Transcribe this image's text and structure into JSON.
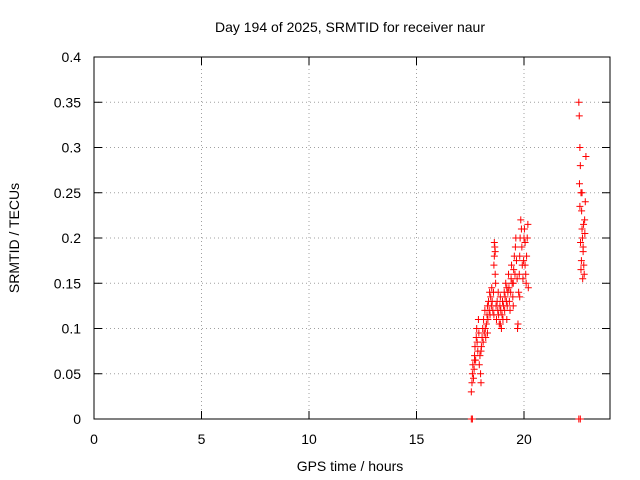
{
  "chart_data": {
    "type": "scatter",
    "title": "Day 194 of 2025, SRMTID for receiver naur",
    "xlabel": "GPS time / hours",
    "ylabel": "SRMTID / TECUs",
    "xlim": [
      0,
      24
    ],
    "ylim": [
      0,
      0.4
    ],
    "x_ticks": [
      0,
      5,
      10,
      15,
      20
    ],
    "x_tick_labels": [
      "0",
      "5",
      "10",
      "15",
      "20"
    ],
    "y_ticks": [
      0,
      0.05,
      0.1,
      0.15,
      0.2,
      0.25,
      0.3,
      0.35,
      0.4
    ],
    "y_tick_labels": [
      "0",
      "0.05",
      "0.1",
      "0.15",
      "0.2",
      "0.25",
      "0.3",
      "0.35",
      "0.4"
    ],
    "grid": true,
    "marker": "plus",
    "colors": {
      "points": "#ff0000",
      "axis": "#000000",
      "grid": "#a0a0a0"
    },
    "series": [
      {
        "points": [
          [
            17.55,
            0.0
          ],
          [
            17.6,
            0.0
          ],
          [
            22.55,
            0.0
          ],
          [
            22.62,
            0.0
          ],
          [
            17.55,
            0.03
          ],
          [
            17.58,
            0.04
          ],
          [
            17.6,
            0.05
          ],
          [
            17.62,
            0.06
          ],
          [
            17.65,
            0.045
          ],
          [
            17.68,
            0.055
          ],
          [
            17.7,
            0.07
          ],
          [
            17.72,
            0.08
          ],
          [
            17.75,
            0.065
          ],
          [
            17.78,
            0.09
          ],
          [
            17.8,
            0.1
          ],
          [
            17.82,
            0.085
          ],
          [
            17.85,
            0.075
          ],
          [
            17.88,
            0.11
          ],
          [
            17.9,
            0.095
          ],
          [
            17.92,
            0.06
          ],
          [
            17.95,
            0.07
          ],
          [
            17.98,
            0.05
          ],
          [
            18.0,
            0.04
          ],
          [
            18.02,
            0.08
          ],
          [
            18.05,
            0.09
          ],
          [
            18.08,
            0.1
          ],
          [
            18.1,
            0.085
          ],
          [
            18.12,
            0.11
          ],
          [
            18.15,
            0.095
          ],
          [
            18.18,
            0.12
          ],
          [
            18.2,
            0.1
          ],
          [
            18.22,
            0.09
          ],
          [
            18.25,
            0.105
          ],
          [
            18.28,
            0.115
          ],
          [
            18.3,
            0.125
          ],
          [
            18.32,
            0.11
          ],
          [
            18.35,
            0.13
          ],
          [
            18.38,
            0.12
          ],
          [
            18.4,
            0.14
          ],
          [
            18.42,
            0.115
          ],
          [
            18.45,
            0.135
          ],
          [
            18.48,
            0.125
          ],
          [
            18.5,
            0.145
          ],
          [
            18.52,
            0.13
          ],
          [
            18.55,
            0.12
          ],
          [
            18.58,
            0.14
          ],
          [
            18.6,
            0.17
          ],
          [
            18.62,
            0.18
          ],
          [
            18.64,
            0.19
          ],
          [
            18.66,
            0.16
          ],
          [
            18.68,
            0.15
          ],
          [
            18.7,
            0.125
          ],
          [
            18.72,
            0.11
          ],
          [
            18.75,
            0.13
          ],
          [
            18.78,
            0.12
          ],
          [
            18.8,
            0.14
          ],
          [
            18.82,
            0.115
          ],
          [
            18.85,
            0.105
          ],
          [
            18.88,
            0.125
          ],
          [
            18.9,
            0.135
          ],
          [
            18.92,
            0.12
          ],
          [
            18.95,
            0.1
          ],
          [
            18.98,
            0.115
          ],
          [
            19.0,
            0.13
          ],
          [
            19.02,
            0.11
          ],
          [
            19.05,
            0.125
          ],
          [
            19.08,
            0.14
          ],
          [
            19.1,
            0.12
          ],
          [
            19.12,
            0.135
          ],
          [
            19.15,
            0.15
          ],
          [
            19.18,
            0.13
          ],
          [
            19.2,
            0.11
          ],
          [
            19.22,
            0.125
          ],
          [
            19.25,
            0.14
          ],
          [
            19.28,
            0.16
          ],
          [
            19.3,
            0.145
          ],
          [
            19.32,
            0.13
          ],
          [
            19.35,
            0.12
          ],
          [
            19.38,
            0.14
          ],
          [
            19.4,
            0.155
          ],
          [
            19.42,
            0.17
          ],
          [
            19.45,
            0.15
          ],
          [
            19.48,
            0.135
          ],
          [
            19.5,
            0.15
          ],
          [
            19.52,
            0.165
          ],
          [
            19.55,
            0.18
          ],
          [
            19.58,
            0.16
          ],
          [
            19.6,
            0.19
          ],
          [
            19.62,
            0.2
          ],
          [
            19.65,
            0.175
          ],
          [
            19.68,
            0.155
          ],
          [
            19.7,
            0.1
          ],
          [
            19.72,
            0.105
          ],
          [
            19.75,
            0.14
          ],
          [
            19.78,
            0.16
          ],
          [
            19.8,
            0.18
          ],
          [
            19.82,
            0.2
          ],
          [
            19.85,
            0.22
          ],
          [
            19.88,
            0.21
          ],
          [
            19.9,
            0.19
          ],
          [
            19.92,
            0.17
          ],
          [
            19.95,
            0.155
          ],
          [
            19.98,
            0.175
          ],
          [
            20.0,
            0.2
          ],
          [
            20.02,
            0.21
          ],
          [
            20.05,
            0.195
          ],
          [
            20.08,
            0.16
          ],
          [
            20.1,
            0.15
          ],
          [
            20.12,
            0.18
          ],
          [
            20.15,
            0.2
          ],
          [
            20.18,
            0.215
          ],
          [
            20.2,
            0.145
          ],
          [
            17.7,
            0.065
          ],
          [
            18.0,
            0.075
          ],
          [
            18.3,
            0.095
          ],
          [
            18.6,
            0.115
          ],
          [
            18.9,
            0.105
          ],
          [
            19.2,
            0.145
          ],
          [
            19.5,
            0.125
          ],
          [
            19.8,
            0.135
          ],
          [
            20.05,
            0.17
          ],
          [
            18.62,
            0.195
          ],
          [
            18.66,
            0.185
          ],
          [
            22.55,
            0.35
          ],
          [
            22.57,
            0.335
          ],
          [
            22.6,
            0.3
          ],
          [
            22.62,
            0.28
          ],
          [
            22.65,
            0.25
          ],
          [
            22.68,
            0.23
          ],
          [
            22.7,
            0.21
          ],
          [
            22.72,
            0.2
          ],
          [
            22.75,
            0.185
          ],
          [
            22.78,
            0.17
          ],
          [
            22.8,
            0.16
          ],
          [
            22.82,
            0.22
          ],
          [
            22.85,
            0.24
          ],
          [
            22.88,
            0.29
          ],
          [
            22.58,
            0.26
          ],
          [
            22.63,
            0.195
          ],
          [
            22.67,
            0.175
          ],
          [
            22.73,
            0.155
          ],
          [
            22.77,
            0.215
          ],
          [
            22.83,
            0.205
          ],
          [
            22.6,
            0.235
          ],
          [
            22.7,
            0.25
          ],
          [
            22.65,
            0.165
          ],
          [
            22.75,
            0.19
          ]
        ]
      }
    ]
  }
}
